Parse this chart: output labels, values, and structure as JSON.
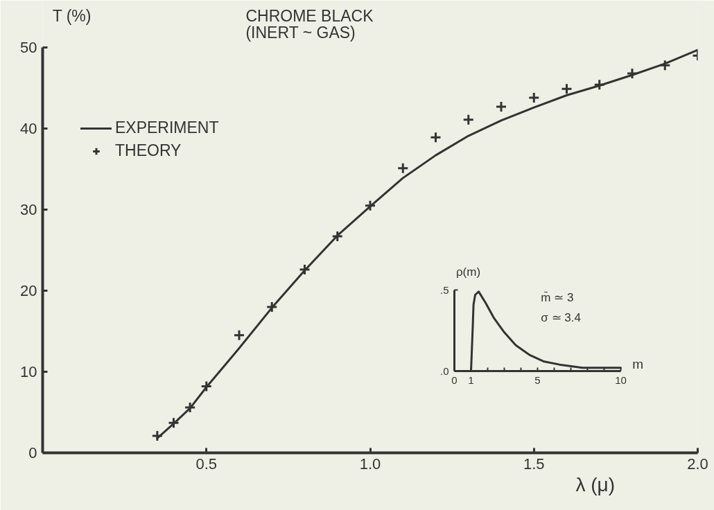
{
  "chart_data": [
    {
      "type": "line",
      "title": "CHROME BLACK",
      "subtitle": "(INERT ~ GAS)",
      "xlabel": "λ (μ)",
      "ylabel": "T (%)",
      "xlim": [
        0,
        2
      ],
      "ylim": [
        0,
        50
      ],
      "xticks": [
        0.5,
        {
          "value": 1,
          "label": "1.0"
        },
        1.5,
        {
          "value": 2,
          "label": "2.0"
        }
      ],
      "yticks": [
        0,
        10,
        20,
        30,
        40,
        50
      ],
      "grid": false,
      "legend": "top left",
      "series": [
        {
          "name": "EXPERIMENT",
          "type": "line",
          "line_style": "solid",
          "color": "#333333",
          "x": [
            0.35,
            0.4,
            0.45,
            0.5,
            0.6,
            0.7,
            0.8,
            0.9,
            1.0,
            1.1,
            1.2,
            1.3,
            1.4,
            1.5,
            1.6,
            1.7,
            1.8,
            1.9,
            2.0
          ],
          "values": [
            1.8,
            3.6,
            5.5,
            8.1,
            12.9,
            17.9,
            22.5,
            26.8,
            30.4,
            33.9,
            36.7,
            39.1,
            41.0,
            42.6,
            44.1,
            45.3,
            46.6,
            48.0,
            49.7
          ]
        },
        {
          "name": "THEORY",
          "type": "scatter",
          "marker": "cross",
          "color": "#333333",
          "x": [
            0.35,
            0.4,
            0.45,
            0.5,
            0.6,
            0.7,
            0.8,
            0.9,
            1.0,
            1.1,
            1.2,
            1.3,
            1.4,
            1.5,
            1.6,
            1.7,
            1.8,
            1.9,
            2.0
          ],
          "values": [
            2.1,
            3.7,
            5.6,
            8.2,
            14.5,
            18.0,
            22.6,
            26.7,
            30.5,
            35.1,
            38.9,
            41.1,
            42.7,
            43.8,
            44.9,
            45.4,
            46.8,
            47.8,
            49.0
          ]
        }
      ]
    },
    {
      "type": "line",
      "xlabel": "m",
      "ylabel": "ρ(m)",
      "xlim": [
        0,
        10
      ],
      "ylim": [
        0,
        0.5
      ],
      "xticks": [
        0,
        1,
        {
          "value": 2,
          "label": null
        },
        {
          "value": 3,
          "label": null
        },
        {
          "value": 4,
          "label": null
        },
        5,
        {
          "value": 6,
          "label": null
        },
        {
          "value": 7,
          "label": null
        },
        {
          "value": 8,
          "label": null
        },
        {
          "value": 9,
          "label": null
        },
        10
      ],
      "yticks": [
        {
          "value": 0,
          "label": ".0"
        },
        {
          "value": 0.5,
          "label": ".5"
        }
      ],
      "grid": false,
      "annotations": [
        "m̄ ≃ 3",
        "σ ≃ 3.4"
      ],
      "color": "#333333",
      "x": [
        1.0,
        1.11,
        1.15,
        1.25,
        1.46,
        1.88,
        2.36,
        2.99,
        3.68,
        4.51,
        5.35,
        6.32,
        7.7,
        9.1,
        10
      ],
      "values": [
        0,
        0.29,
        0.41,
        0.47,
        0.49,
        0.42,
        0.33,
        0.24,
        0.16,
        0.1,
        0.06,
        0.04,
        0.02,
        0.02,
        0.02
      ]
    }
  ]
}
